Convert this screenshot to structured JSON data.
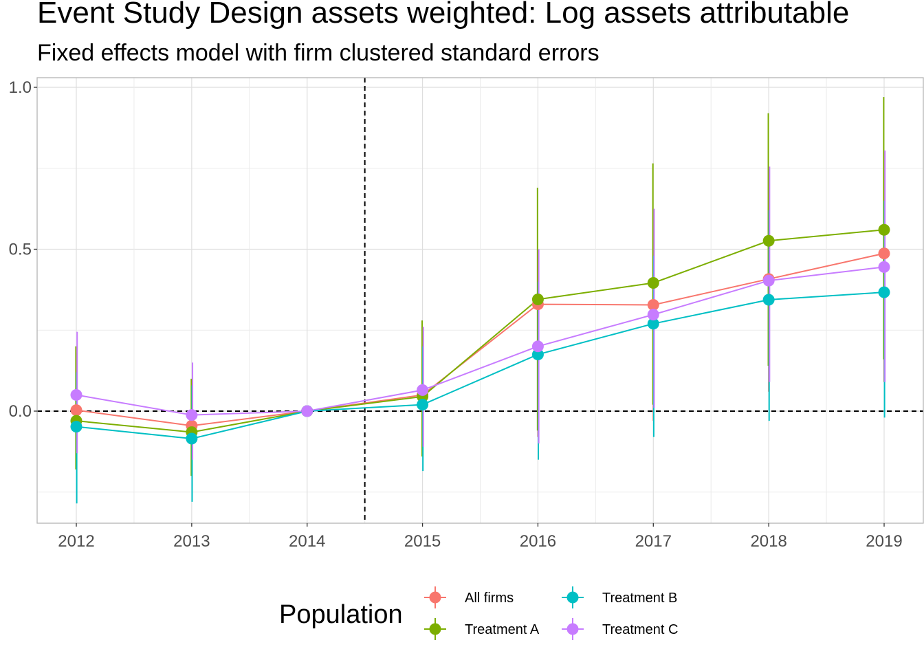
{
  "chart_data": {
    "type": "line",
    "title": "Event Study Design assets weighted: Log assets attributable",
    "subtitle": "Fixed effects model with firm clustered standard errors",
    "x": [
      "2012",
      "2013",
      "2014",
      "2015",
      "2016",
      "2017",
      "2018",
      "2019"
    ],
    "ylim": [
      -0.34,
      1.03
    ],
    "yticks": [
      0.0,
      0.5,
      1.0
    ],
    "ytick_labels": [
      "0.0",
      "0.5",
      "1.0"
    ],
    "event_line_x": 2014.5,
    "hline_y": 0,
    "grid": true,
    "legend": {
      "title": "Population",
      "position": "bottom"
    },
    "series": [
      {
        "name": "All firms",
        "color": "#F8766D",
        "values": [
          0.003,
          -0.045,
          0.0,
          0.05,
          0.33,
          0.328,
          0.408,
          0.487
        ],
        "lower": [
          -0.14,
          -0.17,
          0.0,
          -0.12,
          -0.08,
          -0.03,
          0.06,
          0.09
        ],
        "upper": [
          0.18,
          0.09,
          0.0,
          0.23,
          0.5,
          0.62,
          0.74,
          0.8
        ]
      },
      {
        "name": "Treatment A",
        "color": "#7CAE00",
        "values": [
          -0.03,
          -0.065,
          0.0,
          0.045,
          0.345,
          0.396,
          0.526,
          0.56
        ],
        "lower": [
          -0.18,
          -0.2,
          0.0,
          -0.14,
          -0.06,
          0.02,
          0.14,
          0.16
        ],
        "upper": [
          0.2,
          0.1,
          0.0,
          0.28,
          0.69,
          0.765,
          0.92,
          0.97
        ]
      },
      {
        "name": "Treatment B",
        "color": "#00BFC4",
        "values": [
          -0.048,
          -0.085,
          0.0,
          0.02,
          0.175,
          0.27,
          0.344,
          0.367
        ],
        "lower": [
          -0.285,
          -0.28,
          0.0,
          -0.185,
          -0.15,
          -0.08,
          -0.03,
          -0.02
        ],
        "upper": [
          0.12,
          0.08,
          0.0,
          0.2,
          0.4,
          0.48,
          0.62,
          0.65
        ]
      },
      {
        "name": "Treatment C",
        "color": "#C77CFF",
        "values": [
          0.05,
          -0.012,
          0.0,
          0.065,
          0.2,
          0.298,
          0.403,
          0.445
        ],
        "lower": [
          -0.13,
          -0.15,
          0.0,
          -0.11,
          -0.1,
          0.01,
          0.09,
          0.09
        ],
        "upper": [
          0.245,
          0.15,
          0.0,
          0.26,
          0.5,
          0.625,
          0.755,
          0.805
        ]
      }
    ]
  }
}
